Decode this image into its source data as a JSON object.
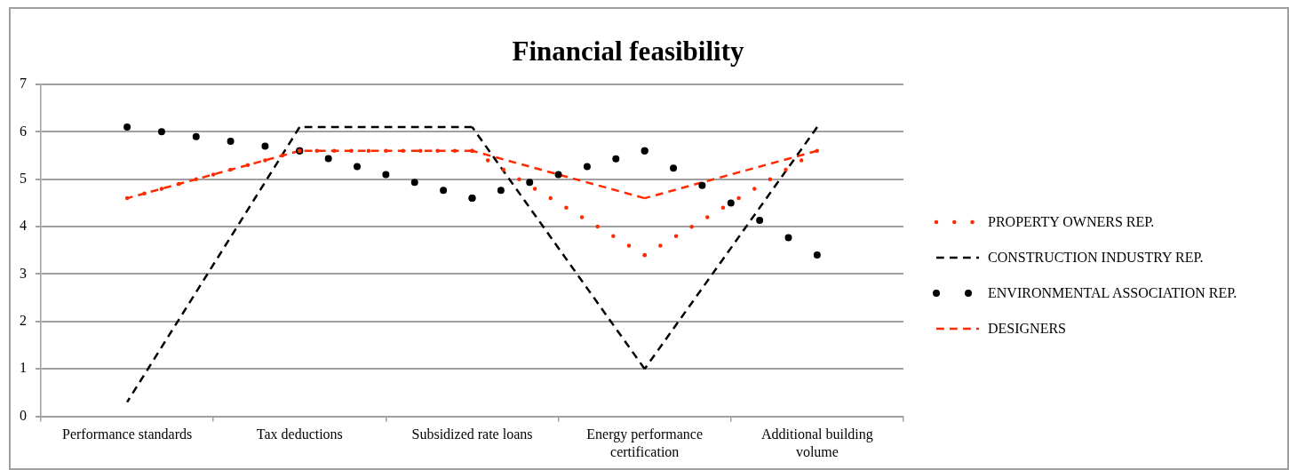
{
  "chart_data": {
    "type": "line",
    "title": "Financial feasibility",
    "categories": [
      "Performance standards",
      "Tax deductions",
      "Subsidized rate loans",
      "Energy performance certification",
      "Additional building volume"
    ],
    "series": [
      {
        "name": "PROPERTY OWNERS REP.",
        "color": "#ff2a00",
        "line_style": "dotted",
        "values": [
          4.6,
          5.6,
          5.6,
          3.4,
          5.6
        ]
      },
      {
        "name": "CONSTRUCTION INDUSTRY REP.",
        "color": "#000000",
        "line_style": "dashed",
        "values": [
          0.3,
          6.1,
          6.1,
          1.0,
          6.1
        ]
      },
      {
        "name": "ENVIRONMENTAL ASSOCIATION REP.",
        "color": "#000000",
        "line_style": "dotted",
        "values": [
          6.1,
          5.6,
          4.6,
          5.6,
          3.4
        ]
      },
      {
        "name": "DESIGNERS",
        "color": "#ff2a00",
        "line_style": "dashed",
        "values": [
          4.6,
          5.6,
          5.6,
          4.6,
          5.6
        ]
      }
    ],
    "ylim": [
      0,
      7
    ],
    "yticks": [
      0,
      1,
      2,
      3,
      4,
      5,
      6,
      7
    ],
    "grid": "y",
    "legend": "right",
    "marker": "none"
  }
}
